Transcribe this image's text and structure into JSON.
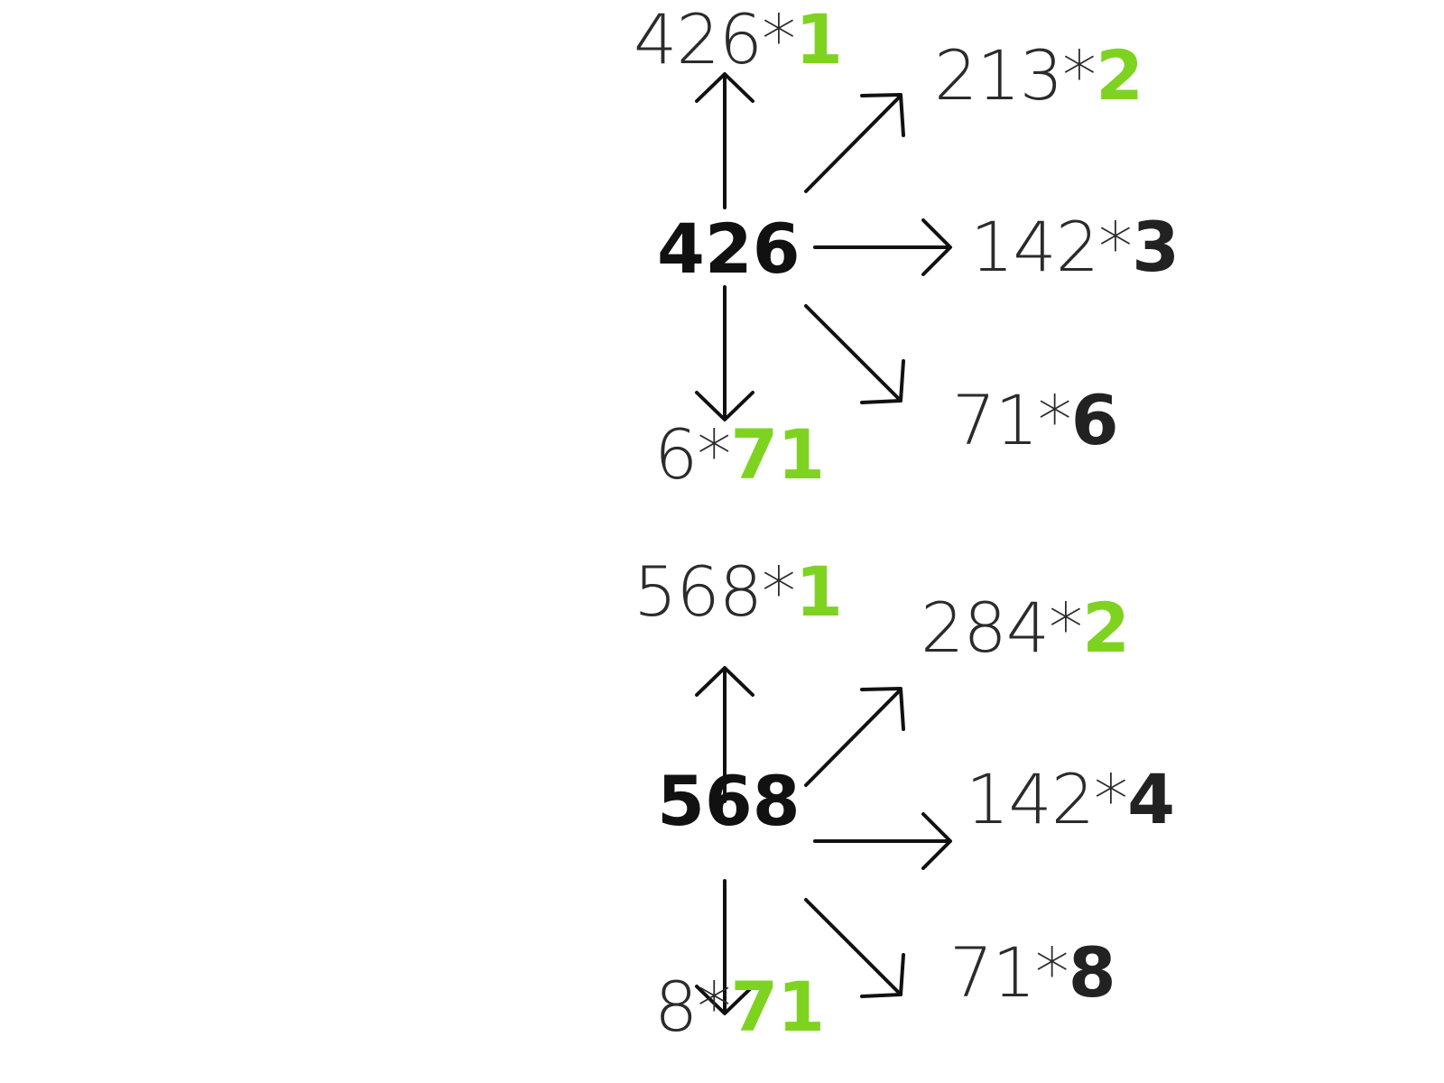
{
  "accent_color": "#7ed321",
  "diagrams": [
    {
      "center": "426",
      "top": {
        "base": "426*",
        "factor": "1",
        "factor_color": "green"
      },
      "upper_right": {
        "base": "213*",
        "factor": "2",
        "factor_color": "green"
      },
      "right": {
        "base": "142*",
        "factor": "3",
        "factor_color": "dark"
      },
      "lower_right": {
        "base": "71*",
        "factor": "6",
        "factor_color": "dark"
      },
      "bottom": {
        "base": "6*",
        "factor": "71",
        "factor_color": "green"
      }
    },
    {
      "center": "568",
      "top": {
        "base": "568*",
        "factor": "1",
        "factor_color": "green"
      },
      "upper_right": {
        "base": "284*",
        "factor": "2",
        "factor_color": "green"
      },
      "right": {
        "base": "142*",
        "factor": "4",
        "factor_color": "dark"
      },
      "lower_right": {
        "base": "71*",
        "factor": "8",
        "factor_color": "dark"
      },
      "bottom": {
        "base": "8*",
        "factor": "71",
        "factor_color": "green"
      }
    }
  ]
}
